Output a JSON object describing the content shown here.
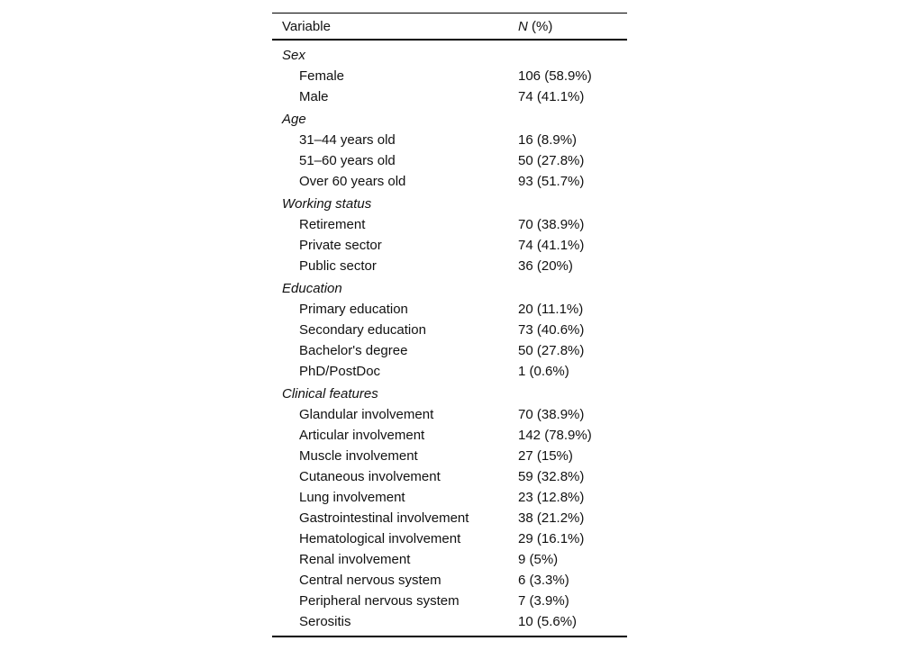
{
  "table": {
    "header": {
      "variable": "Variable",
      "n_italic": "N",
      "n_rest": " (%)"
    },
    "rows": [
      {
        "type": "category",
        "label": "Sex",
        "value": ""
      },
      {
        "type": "item",
        "label": "Female",
        "value": "106 (58.9%)"
      },
      {
        "type": "item",
        "label": "Male",
        "value": "74 (41.1%)"
      },
      {
        "type": "category",
        "label": "Age",
        "value": ""
      },
      {
        "type": "item",
        "label": "31–44 years old",
        "value": "16 (8.9%)"
      },
      {
        "type": "item",
        "label": "51–60 years old",
        "value": "50 (27.8%)"
      },
      {
        "type": "item",
        "label": "Over 60 years old",
        "value": "93 (51.7%)"
      },
      {
        "type": "category",
        "label": "Working status",
        "value": ""
      },
      {
        "type": "item",
        "label": "Retirement",
        "value": "70 (38.9%)"
      },
      {
        "type": "item",
        "label": "Private sector",
        "value": "74 (41.1%)"
      },
      {
        "type": "item",
        "label": "Public sector",
        "value": "36 (20%)"
      },
      {
        "type": "category",
        "label": "Education",
        "value": ""
      },
      {
        "type": "item",
        "label": "Primary education",
        "value": "20 (11.1%)"
      },
      {
        "type": "item",
        "label": "Secondary education",
        "value": "73 (40.6%)"
      },
      {
        "type": "item",
        "label": "Bachelor's degree",
        "value": "50 (27.8%)"
      },
      {
        "type": "item",
        "label": "PhD/PostDoc",
        "value": "1 (0.6%)"
      },
      {
        "type": "category",
        "label": "Clinical features",
        "value": ""
      },
      {
        "type": "item",
        "label": "Glandular involvement",
        "value": "70 (38.9%)"
      },
      {
        "type": "item",
        "label": "Articular involvement",
        "value": "142 (78.9%)"
      },
      {
        "type": "item",
        "label": "Muscle involvement",
        "value": "27 (15%)"
      },
      {
        "type": "item",
        "label": "Cutaneous involvement",
        "value": "59 (32.8%)"
      },
      {
        "type": "item",
        "label": "Lung involvement",
        "value": "23 (12.8%)"
      },
      {
        "type": "item",
        "label": "Gastrointestinal involvement",
        "value": "38 (21.2%)"
      },
      {
        "type": "item",
        "label": "Hematological involvement",
        "value": "29 (16.1%)"
      },
      {
        "type": "item",
        "label": "Renal involvement",
        "value": "9 (5%)"
      },
      {
        "type": "item",
        "label": "Central nervous system",
        "value": "6 (3.3%)"
      },
      {
        "type": "item",
        "label": "Peripheral nervous system",
        "value": "7 (3.9%)"
      },
      {
        "type": "item",
        "label": "Serositis",
        "value": "10 (5.6%)"
      }
    ]
  },
  "chart_data": {
    "type": "table",
    "title": "",
    "columns": [
      "Variable",
      "N (%)"
    ],
    "sections": [
      {
        "name": "Sex",
        "entries": [
          [
            "Female",
            106,
            58.9
          ],
          [
            "Male",
            74,
            41.1
          ]
        ]
      },
      {
        "name": "Age",
        "entries": [
          [
            "31–44 years old",
            16,
            8.9
          ],
          [
            "51–60 years old",
            50,
            27.8
          ],
          [
            "Over 60 years old",
            93,
            51.7
          ]
        ]
      },
      {
        "name": "Working status",
        "entries": [
          [
            "Retirement",
            70,
            38.9
          ],
          [
            "Private sector",
            74,
            41.1
          ],
          [
            "Public sector",
            36,
            20
          ]
        ]
      },
      {
        "name": "Education",
        "entries": [
          [
            "Primary education",
            20,
            11.1
          ],
          [
            "Secondary education",
            73,
            40.6
          ],
          [
            "Bachelor's degree",
            50,
            27.8
          ],
          [
            "PhD/PostDoc",
            1,
            0.6
          ]
        ]
      },
      {
        "name": "Clinical features",
        "entries": [
          [
            "Glandular involvement",
            70,
            38.9
          ],
          [
            "Articular involvement",
            142,
            78.9
          ],
          [
            "Muscle involvement",
            27,
            15
          ],
          [
            "Cutaneous involvement",
            59,
            32.8
          ],
          [
            "Lung involvement",
            23,
            12.8
          ],
          [
            "Gastrointestinal involvement",
            38,
            21.2
          ],
          [
            "Hematological involvement",
            29,
            16.1
          ],
          [
            "Renal involvement",
            9,
            5
          ],
          [
            "Central nervous system",
            6,
            3.3
          ],
          [
            "Peripheral nervous system",
            7,
            3.9
          ],
          [
            "Serositis",
            10,
            5.6
          ]
        ]
      }
    ]
  }
}
